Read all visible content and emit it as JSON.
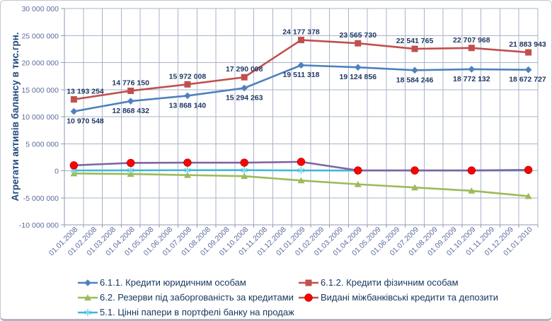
{
  "chart_data": {
    "type": "line",
    "title": "",
    "ylabel": "Агрегати активів балансу в тис.грн.",
    "ylim": [
      -10000000,
      30000000
    ],
    "grid": true,
    "y_ticks": [
      {
        "label": "30 000 000",
        "value": 30000000
      },
      {
        "label": "25 000 000",
        "value": 25000000
      },
      {
        "label": "20 000 000",
        "value": 20000000
      },
      {
        "label": "15 000 000",
        "value": 15000000
      },
      {
        "label": "10 000 000",
        "value": 10000000
      },
      {
        "label": "5 000 000",
        "value": 5000000
      },
      {
        "label": "0",
        "value": 0
      },
      {
        "label": "-5 000 000",
        "value": -5000000
      },
      {
        "label": "-10 000 000",
        "value": -10000000
      }
    ],
    "x_categories": [
      "01.01.2008",
      "01.02.2008",
      "01.03.2008",
      "01.04.2008",
      "01.05.2008",
      "01.06.2008",
      "01.07.2008",
      "01.08.2008",
      "01.09.2008",
      "01.10.2008",
      "01.11.2008",
      "01.12.2008",
      "01.01.2009",
      "01.02.2009",
      "01.03.2009",
      "01.04.2009",
      "01.05.2009",
      "01.06.2009",
      "01.07.2009",
      "01.08.2009",
      "01.09.2009",
      "01.10.2009",
      "01.11.2009",
      "01.12.2009",
      "01.01.2010"
    ],
    "point_category_indices": [
      0,
      3,
      6,
      9,
      12,
      15,
      18,
      21,
      24
    ],
    "series": [
      {
        "id": "loans-legal-entities",
        "name": "6.1.1. Кредити юридичним особам",
        "color": "#4F81BD",
        "marker": "diamond",
        "label_side": "below",
        "values": [
          10970548,
          12868432,
          13868140,
          15294263,
          19511318,
          19124856,
          18584246,
          18772132,
          18672727
        ],
        "labels": [
          "10 970 548",
          "12 868 432",
          "13 868 140",
          "15 294 263",
          "19 511 318",
          "19 124 856",
          "18 584 246",
          "18 772 132",
          "18 672 727"
        ]
      },
      {
        "id": "loans-individuals",
        "name": "6.1.2. Кредити фізичним особам",
        "color": "#C0504D",
        "marker": "square",
        "label_side": "above",
        "values": [
          13193254,
          14776150,
          15972008,
          17290008,
          24177378,
          23565730,
          22541765,
          22707968,
          21883943
        ],
        "labels": [
          "13 193 254",
          "14 776 150",
          "15 972 008",
          "17 290 008",
          "24 177 378",
          "23 565 730",
          "22 541 765",
          "22 707 968",
          "21 883 943"
        ]
      },
      {
        "id": "loan-loss-reserves",
        "name": "6.2. Резерви під заборгованість за кредитами",
        "color": "#9BBB59",
        "marker": "triangle",
        "values": [
          -500000,
          -600000,
          -800000,
          -1000000,
          -1800000,
          -2500000,
          -3100000,
          -3700000,
          -4700000
        ]
      },
      {
        "id": "securities-for-sale",
        "name": "5.1. Цінні папери в портфелі банку на продаж",
        "color": "#41B6D9",
        "marker": "asterisk",
        "marker_color": "#7BD4E6",
        "values": [
          50000,
          80000,
          100000,
          100000,
          60000,
          40000,
          40000,
          40000,
          60000
        ]
      },
      {
        "id": "interbank-loans-deposits",
        "name": "Видані міжбанківські кредити та депозити",
        "color": "#8064A2",
        "marker": "circle",
        "marker_color": "#FE0000",
        "legend_line_color": "#C0504D",
        "values": [
          1000000,
          1450000,
          1500000,
          1500000,
          1650000,
          60000,
          60000,
          60000,
          150000
        ]
      }
    ],
    "legend": {
      "position": "bottom",
      "columns": [
        [
          0,
          2,
          3
        ],
        [
          1,
          4
        ]
      ]
    }
  },
  "colors": {
    "grid": "#A9B3C9",
    "axis": "#8D99B5",
    "tick_text": "#5C6C9E",
    "data_label_text": "#1F3864",
    "legend_text": "#17365D",
    "axis_title_text": "#1F497D",
    "background": "#FFFFFF",
    "border": "#C2C8D2"
  }
}
